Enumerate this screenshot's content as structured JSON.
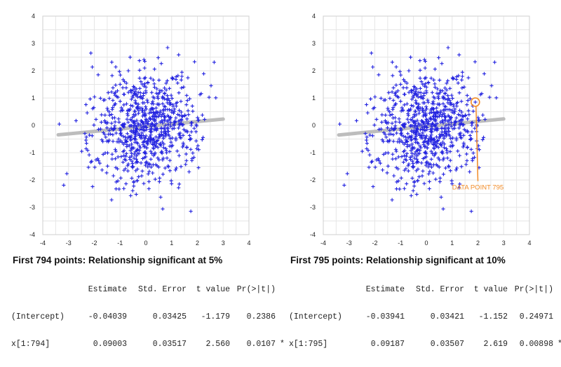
{
  "chart_data": [
    {
      "type": "scatter",
      "n_points": 794,
      "title": "First 794 points: Relationship significant at 5%",
      "xlim": [
        -4,
        4
      ],
      "ylim": [
        -4,
        4
      ],
      "x_ticks": [
        -4,
        -3,
        -2,
        -1,
        0,
        1,
        2,
        3,
        4
      ],
      "y_ticks": [
        -4,
        -3,
        -2,
        -1,
        0,
        1,
        2,
        3,
        4
      ],
      "grid": true,
      "marker": "+",
      "point_color": "#2323e0",
      "fit_line": {
        "intercept": -0.04039,
        "slope": 0.09003,
        "x_range": [
          -3.4,
          3.0
        ],
        "color": "#bdbdbd"
      },
      "regression_table": {
        "header": [
          "",
          "Estimate",
          "Std. Error",
          "t value",
          "Pr(>|t|)",
          ""
        ],
        "rows": [
          [
            "(Intercept)",
            "-0.04039",
            "0.03425",
            "-1.179",
            "0.2386",
            ""
          ],
          [
            "x[1:794]",
            "0.09003",
            "0.03517",
            "2.560",
            "0.0107",
            "*"
          ]
        ]
      }
    },
    {
      "type": "scatter",
      "n_points": 795,
      "title": "First 795 points: Relationship significant at 10%",
      "xlim": [
        -4,
        4
      ],
      "ylim": [
        -4,
        4
      ],
      "x_ticks": [
        -4,
        -3,
        -2,
        -1,
        0,
        1,
        2,
        3,
        4
      ],
      "y_ticks": [
        -4,
        -3,
        -2,
        -1,
        0,
        1,
        2,
        3,
        4
      ],
      "grid": true,
      "marker": "+",
      "point_color": "#2323e0",
      "fit_line": {
        "intercept": -0.03941,
        "slope": 0.09187,
        "x_range": [
          -3.4,
          3.0
        ],
        "color": "#bdbdbd"
      },
      "highlight": {
        "label": "DATA POINT 795",
        "x": 1.9,
        "y": 0.85,
        "label_x": 2.0,
        "label_y": -2.35,
        "color": "#f28c28"
      },
      "regression_table": {
        "header": [
          "",
          "Estimate",
          "Std. Error",
          "t value",
          "Pr(>|t|)",
          ""
        ],
        "rows": [
          [
            "(Intercept)",
            "-0.03941",
            "0.03421",
            "-1.152",
            "0.24971",
            ""
          ],
          [
            "x[1:795]",
            "0.09187",
            "0.03507",
            "2.619",
            "0.00898",
            "**"
          ]
        ]
      }
    }
  ]
}
